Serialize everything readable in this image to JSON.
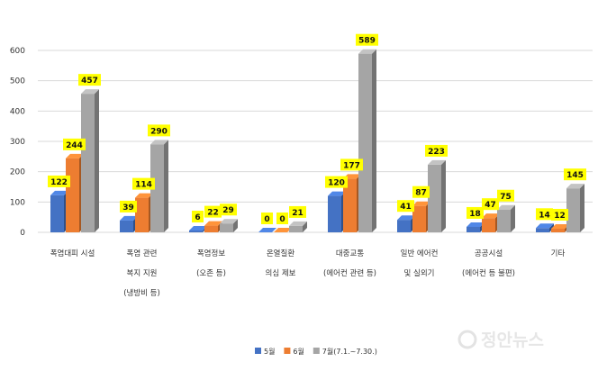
{
  "chart_data": {
    "type": "bar",
    "categories": [
      [
        "폭염대피 시설"
      ],
      [
        "폭염 관련",
        "복지 지원",
        "(냉방비 등)"
      ],
      [
        "폭염정보",
        "(오존 등)"
      ],
      [
        "온열질환",
        "의심 제보"
      ],
      [
        "대중교통",
        "(에어컨 관련 등)"
      ],
      [
        "일반 에어컨",
        "및 실외기"
      ],
      [
        "공공시설",
        "(에어컨 등 불편)"
      ],
      [
        "기타"
      ]
    ],
    "series": [
      {
        "name": "5월",
        "color": "#4472c4",
        "values": [
          122,
          39,
          6,
          0,
          120,
          41,
          18,
          14
        ]
      },
      {
        "name": "6월",
        "color": "#ed7d31",
        "values": [
          244,
          114,
          22,
          0,
          177,
          87,
          47,
          12
        ]
      },
      {
        "name": "7월(7.1.~7.30.)",
        "color": "#a5a5a5",
        "values": [
          457,
          290,
          29,
          21,
          589,
          223,
          75,
          145
        ]
      }
    ],
    "ylim": [
      0,
      600
    ],
    "yticks": [
      0,
      100,
      200,
      300,
      400,
      500,
      600
    ],
    "grid": true,
    "legend_position": "bottom",
    "data_label_bg": "#ffff00"
  },
  "watermark": "정안뉴스"
}
